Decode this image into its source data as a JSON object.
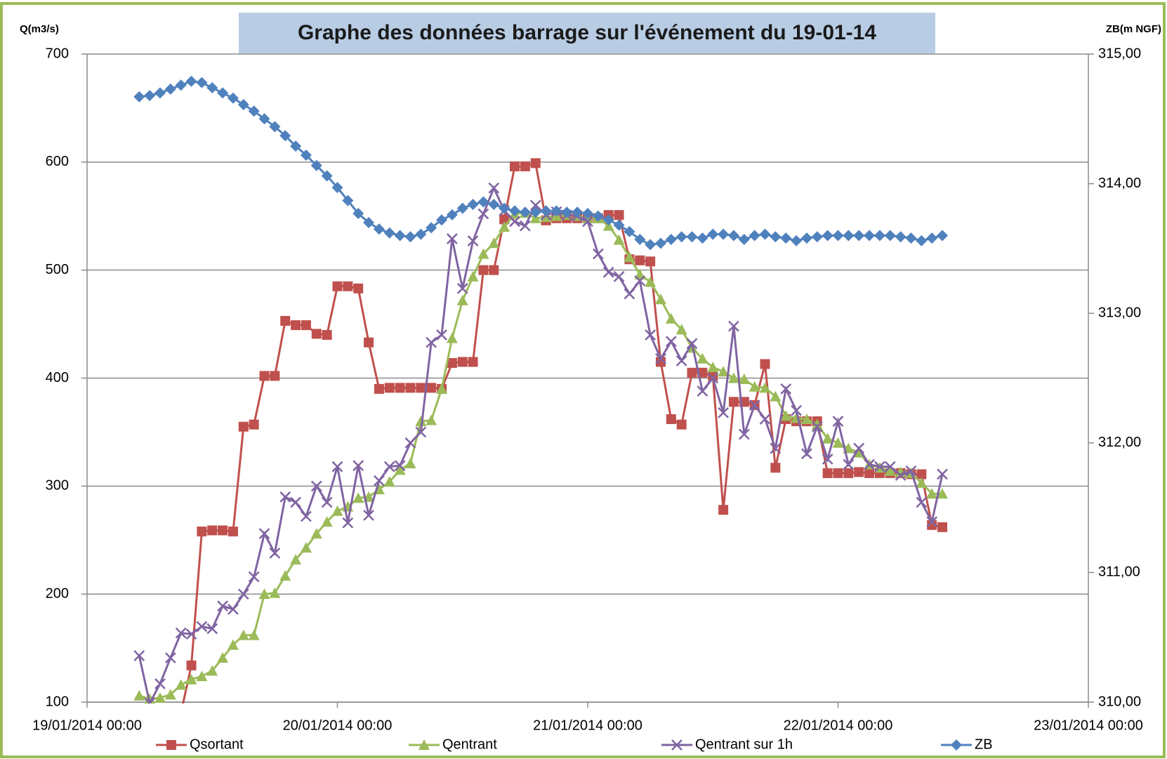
{
  "chart_data": {
    "type": "line",
    "title": "Graphe des données barrage sur l'événement du 19-01-14",
    "y_label": "Q(m3/s)",
    "y2_label": "ZB(m NGF)",
    "x": [
      "19/01/2014 05:00",
      "19/01/2014 06:00",
      "19/01/2014 07:00",
      "19/01/2014 08:00",
      "19/01/2014 09:00",
      "19/01/2014 10:00",
      "19/01/2014 11:00",
      "19/01/2014 12:00",
      "19/01/2014 13:00",
      "19/01/2014 14:00",
      "19/01/2014 15:00",
      "19/01/2014 16:00",
      "19/01/2014 17:00",
      "19/01/2014 18:00",
      "19/01/2014 19:00",
      "19/01/2014 20:00",
      "19/01/2014 21:00",
      "19/01/2014 22:00",
      "19/01/2014 23:00",
      "20/01/2014 00:00",
      "20/01/2014 01:00",
      "20/01/2014 02:00",
      "20/01/2014 03:00",
      "20/01/2014 04:00",
      "20/01/2014 05:00",
      "20/01/2014 06:00",
      "20/01/2014 07:00",
      "20/01/2014 08:00",
      "20/01/2014 09:00",
      "20/01/2014 10:00",
      "20/01/2014 11:00",
      "20/01/2014 12:00",
      "20/01/2014 13:00",
      "20/01/2014 14:00",
      "20/01/2014 15:00",
      "20/01/2014 16:00",
      "20/01/2014 17:00",
      "20/01/2014 18:00",
      "20/01/2014 19:00",
      "20/01/2014 20:00",
      "20/01/2014 21:00",
      "20/01/2014 22:00",
      "20/01/2014 23:00",
      "21/01/2014 00:00",
      "21/01/2014 01:00",
      "21/01/2014 02:00",
      "21/01/2014 03:00",
      "21/01/2014 04:00",
      "21/01/2014 05:00",
      "21/01/2014 06:00",
      "21/01/2014 07:00",
      "21/01/2014 08:00",
      "21/01/2014 09:00",
      "21/01/2014 10:00",
      "21/01/2014 11:00",
      "21/01/2014 12:00",
      "21/01/2014 13:00",
      "21/01/2014 14:00",
      "21/01/2014 15:00",
      "21/01/2014 16:00",
      "21/01/2014 17:00",
      "21/01/2014 18:00",
      "21/01/2014 19:00",
      "21/01/2014 20:00",
      "21/01/2014 21:00",
      "21/01/2014 22:00",
      "21/01/2014 23:00",
      "22/01/2014 00:00",
      "22/01/2014 01:00",
      "22/01/2014 02:00",
      "22/01/2014 03:00",
      "22/01/2014 04:00",
      "22/01/2014 05:00",
      "22/01/2014 06:00",
      "22/01/2014 07:00",
      "22/01/2014 08:00",
      "22/01/2014 09:00",
      "22/01/2014 10:00"
    ],
    "xlim": [
      "19/01/2014 00:00",
      "23/01/2014 00:00"
    ],
    "xticks": [
      "19/01/2014 00:00",
      "20/01/2014 00:00",
      "21/01/2014 00:00",
      "22/01/2014 00:00",
      "23/01/2014 00:00"
    ],
    "ylim": [
      100,
      700
    ],
    "yticks": [
      100,
      200,
      300,
      400,
      500,
      600,
      700
    ],
    "y2lim": [
      310,
      315
    ],
    "y2ticks": [
      {
        "value": 310,
        "label": "310,00"
      },
      {
        "value": 311,
        "label": "311,00"
      },
      {
        "value": 312,
        "label": "312,00"
      },
      {
        "value": 313,
        "label": "313,00"
      },
      {
        "value": 314,
        "label": "314,00"
      },
      {
        "value": 315,
        "label": "315,00"
      }
    ],
    "grid": true,
    "legend": "bottom",
    "series": [
      {
        "name": "Qsortant",
        "color": "#c0504d",
        "marker": "square",
        "values": [
          null,
          null,
          null,
          null,
          90,
          134,
          258,
          259,
          259,
          258,
          355,
          357,
          402,
          402,
          453,
          449,
          449,
          441,
          440,
          485,
          485,
          483,
          433,
          390,
          391,
          391,
          391,
          391,
          391,
          390,
          414,
          415,
          415,
          500,
          500,
          547,
          596,
          596,
          599,
          546,
          548,
          548,
          548,
          548,
          548,
          551,
          551,
          510,
          509,
          508,
          415,
          362,
          357,
          405,
          405,
          402,
          278,
          378,
          378,
          375,
          413,
          317,
          362,
          360,
          360,
          360,
          312,
          312,
          312,
          313,
          312,
          312,
          312,
          312,
          311,
          311,
          264,
          262
        ]
      },
      {
        "name": "Qentrant",
        "color": "#9bbb59",
        "marker": "triangle",
        "values": [
          106,
          103,
          104,
          107,
          116,
          121,
          124,
          129,
          141,
          153,
          162,
          162,
          200,
          201,
          217,
          232,
          243,
          256,
          267,
          277,
          281,
          289,
          290,
          297,
          304,
          315,
          321,
          360,
          361,
          390,
          437,
          472,
          494,
          515,
          525,
          540,
          552,
          553,
          548,
          549,
          550,
          551,
          550,
          548,
          548,
          541,
          528,
          512,
          496,
          489,
          473,
          455,
          445,
          428,
          418,
          410,
          406,
          400,
          399,
          392,
          391,
          383,
          365,
          363,
          362,
          357,
          344,
          340,
          335,
          331,
          320,
          317,
          314,
          313,
          312,
          303,
          293,
          293
        ]
      },
      {
        "name": "Qentrant sur 1h",
        "color": "#8064a2",
        "marker": "x",
        "values": [
          143,
          99,
          117,
          141,
          164,
          163,
          170,
          168,
          189,
          186,
          200,
          216,
          256,
          238,
          290,
          285,
          272,
          300,
          285,
          318,
          266,
          319,
          273,
          305,
          318,
          319,
          340,
          350,
          433,
          440,
          529,
          483,
          527,
          552,
          576,
          555,
          545,
          541,
          560,
          551,
          554,
          551,
          550,
          545,
          515,
          498,
          494,
          478,
          490,
          440,
          418,
          434,
          416,
          432,
          388,
          400,
          368,
          448,
          348,
          375,
          362,
          335,
          390,
          370,
          330,
          355,
          325,
          360,
          320,
          335,
          320,
          318,
          318,
          310,
          314,
          285,
          267,
          311
        ]
      },
      {
        "name": "ZB",
        "color": "#4f81bd",
        "marker": "diamond",
        "axis": "y2",
        "values": [
          314.67,
          314.68,
          314.7,
          314.73,
          314.76,
          314.79,
          314.78,
          314.74,
          314.7,
          314.66,
          314.61,
          314.56,
          314.5,
          314.44,
          314.37,
          314.29,
          314.22,
          314.14,
          314.06,
          313.97,
          313.87,
          313.77,
          313.7,
          313.65,
          313.62,
          313.6,
          313.59,
          313.61,
          313.66,
          313.72,
          313.76,
          313.81,
          313.84,
          313.86,
          313.84,
          313.81,
          313.79,
          313.78,
          313.78,
          313.79,
          313.79,
          313.78,
          313.78,
          313.77,
          313.75,
          313.72,
          313.68,
          313.63,
          313.57,
          313.53,
          313.54,
          313.57,
          313.59,
          313.59,
          313.58,
          313.61,
          313.61,
          313.6,
          313.57,
          313.6,
          313.61,
          313.59,
          313.58,
          313.56,
          313.58,
          313.59,
          313.6,
          313.6,
          313.6,
          313.6,
          313.6,
          313.6,
          313.6,
          313.59,
          313.58,
          313.56,
          313.58,
          313.6
        ]
      }
    ]
  }
}
